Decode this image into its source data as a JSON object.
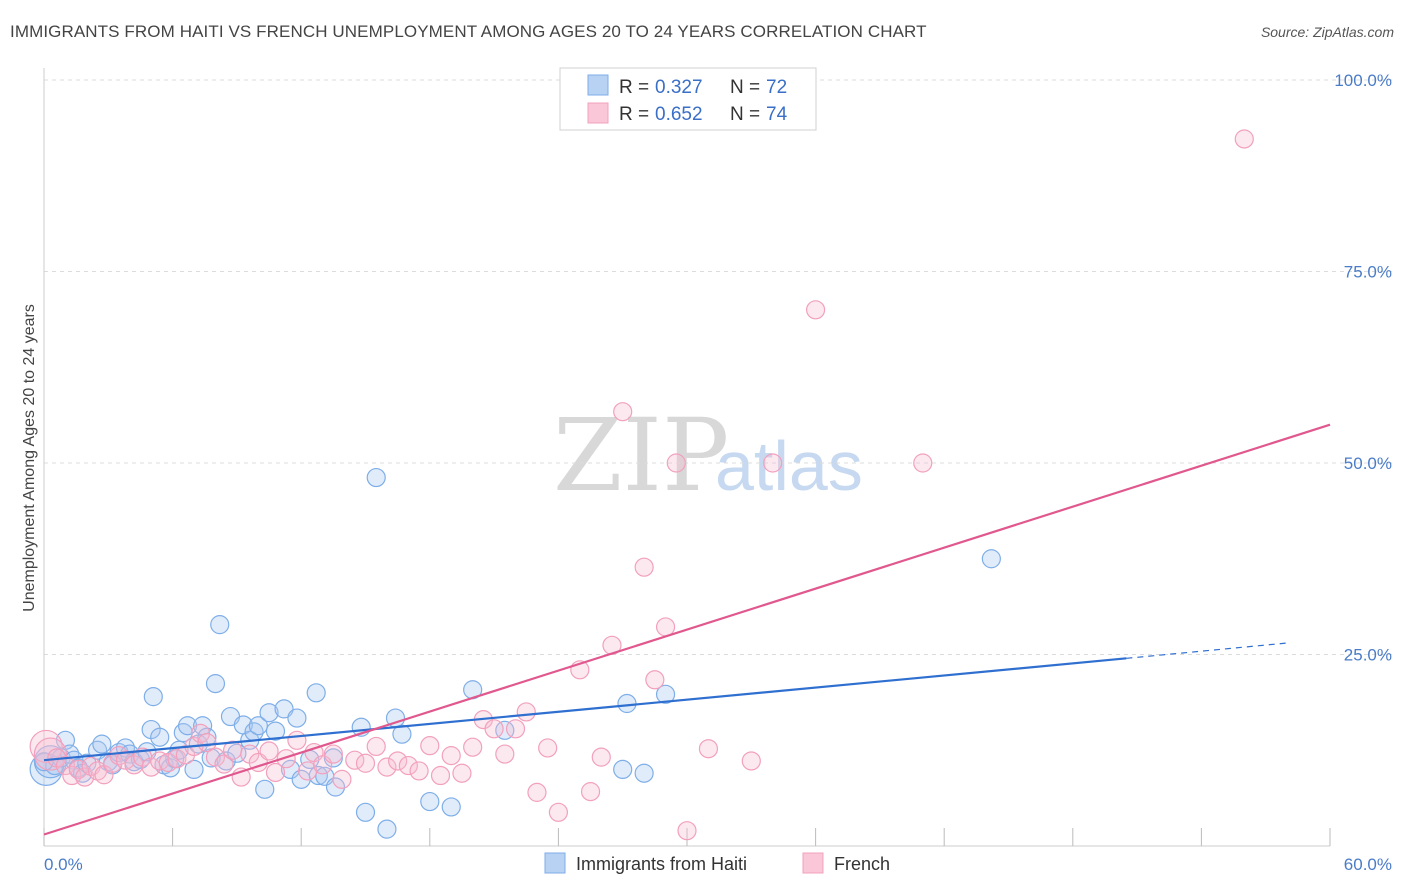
{
  "header": {
    "title": "IMMIGRANTS FROM HAITI VS FRENCH UNEMPLOYMENT AMONG AGES 20 TO 24 YEARS CORRELATION CHART",
    "source": "Source: ZipAtlas.com"
  },
  "watermark": {
    "zip": "ZIP",
    "atlas": "atlas"
  },
  "legend": {
    "rows": [
      {
        "r_label": "R = ",
        "r_value": "0.327",
        "n_label": "N = ",
        "n_value": "72"
      },
      {
        "r_label": "R = ",
        "r_value": "0.652",
        "n_label": "N = ",
        "n_value": "74"
      }
    ]
  },
  "chart_data": {
    "type": "scatter",
    "title": "IMMIGRANTS FROM HAITI VS FRENCH UNEMPLOYMENT AMONG AGES 20 TO 24 YEARS CORRELATION CHART",
    "xlabel": "",
    "ylabel": "Unemployment Among Ages 20 to 24 years",
    "xlim": [
      0,
      60
    ],
    "ylim": [
      0,
      100
    ],
    "x_tick_labels": [
      "0.0%",
      "60.0%"
    ],
    "y_ticks": [
      25,
      50,
      75,
      100
    ],
    "y_tick_labels": [
      "25.0%",
      "50.0%",
      "75.0%",
      "100.0%"
    ],
    "grid": true,
    "legend_position": "top-center",
    "colors": {
      "haiti": "#7eaee8",
      "haiti_line": "#2f6fd0",
      "french": "#f2a0bd",
      "french_line": "#e0588e"
    },
    "series": [
      {
        "name": "Immigrants from Haiti",
        "R": 0.327,
        "N": 72,
        "trend": {
          "x0": 0,
          "y0": 11.2,
          "x1": 50.5,
          "y1": 24.5,
          "dash_to_x": 58,
          "dash_to_y": 26.5
        },
        "points": [
          [
            0.1,
            10.0
          ],
          [
            0.3,
            11.0
          ],
          [
            0.5,
            10.5
          ],
          [
            0.8,
            11.5
          ],
          [
            1.0,
            13.8
          ],
          [
            1.2,
            12.0
          ],
          [
            1.4,
            11.2
          ],
          [
            1.6,
            10.2
          ],
          [
            1.8,
            9.5
          ],
          [
            2.0,
            10.8
          ],
          [
            2.5,
            12.5
          ],
          [
            2.7,
            13.3
          ],
          [
            3.0,
            11.0
          ],
          [
            3.2,
            10.6
          ],
          [
            3.5,
            12.2
          ],
          [
            3.8,
            12.8
          ],
          [
            4.0,
            12.0
          ],
          [
            4.2,
            11.0
          ],
          [
            4.5,
            11.3
          ],
          [
            4.8,
            12.3
          ],
          [
            5.0,
            15.2
          ],
          [
            5.1,
            19.5
          ],
          [
            5.4,
            14.2
          ],
          [
            5.6,
            10.6
          ],
          [
            5.9,
            10.2
          ],
          [
            6.1,
            11.4
          ],
          [
            6.3,
            12.5
          ],
          [
            6.5,
            14.8
          ],
          [
            6.7,
            15.7
          ],
          [
            7.0,
            10.0
          ],
          [
            7.2,
            13.3
          ],
          [
            7.4,
            15.7
          ],
          [
            7.6,
            14.2
          ],
          [
            7.8,
            11.5
          ],
          [
            8.0,
            21.2
          ],
          [
            8.2,
            28.9
          ],
          [
            8.5,
            11.1
          ],
          [
            8.7,
            16.9
          ],
          [
            9.0,
            12.1
          ],
          [
            9.3,
            15.8
          ],
          [
            9.6,
            13.8
          ],
          [
            9.8,
            14.9
          ],
          [
            10.0,
            15.7
          ],
          [
            10.3,
            7.4
          ],
          [
            10.5,
            17.4
          ],
          [
            10.8,
            15.0
          ],
          [
            11.2,
            17.9
          ],
          [
            11.5,
            10.0
          ],
          [
            11.8,
            16.7
          ],
          [
            12.0,
            8.7
          ],
          [
            12.4,
            11.3
          ],
          [
            12.7,
            20.0
          ],
          [
            12.8,
            9.2
          ],
          [
            13.1,
            9.1
          ],
          [
            13.5,
            11.5
          ],
          [
            13.6,
            7.7
          ],
          [
            14.8,
            15.5
          ],
          [
            15.0,
            4.4
          ],
          [
            15.5,
            48.1
          ],
          [
            16.0,
            2.2
          ],
          [
            16.4,
            16.7
          ],
          [
            16.7,
            14.6
          ],
          [
            18.0,
            5.8
          ],
          [
            19.0,
            5.1
          ],
          [
            20.0,
            20.4
          ],
          [
            21.5,
            15.1
          ],
          [
            27.0,
            10.0
          ],
          [
            27.2,
            18.6
          ],
          [
            28.0,
            9.5
          ],
          [
            29.0,
            19.8
          ],
          [
            44.2,
            37.5
          ],
          [
            0.0,
            11.0
          ]
        ]
      },
      {
        "name": "French",
        "R": 0.652,
        "N": 74,
        "trend": {
          "x0": 0,
          "y0": 1.5,
          "x1": 60,
          "y1": 55.0
        },
        "points": [
          [
            0.1,
            13.0
          ],
          [
            0.3,
            12.0
          ],
          [
            0.6,
            11.5
          ],
          [
            1.0,
            10.5
          ],
          [
            1.3,
            9.2
          ],
          [
            1.6,
            10.0
          ],
          [
            1.9,
            9.0
          ],
          [
            2.2,
            10.4
          ],
          [
            2.5,
            9.8
          ],
          [
            2.8,
            9.3
          ],
          [
            3.2,
            10.8
          ],
          [
            3.5,
            11.8
          ],
          [
            3.8,
            11.2
          ],
          [
            4.2,
            10.6
          ],
          [
            4.6,
            11.6
          ],
          [
            5.0,
            10.3
          ],
          [
            5.4,
            11.1
          ],
          [
            5.8,
            10.9
          ],
          [
            6.2,
            11.4
          ],
          [
            6.6,
            11.9
          ],
          [
            7.0,
            13.0
          ],
          [
            7.3,
            14.7
          ],
          [
            7.6,
            13.5
          ],
          [
            8.0,
            11.6
          ],
          [
            8.4,
            10.7
          ],
          [
            8.8,
            12.5
          ],
          [
            9.2,
            9.0
          ],
          [
            9.6,
            12.0
          ],
          [
            10.0,
            10.9
          ],
          [
            10.5,
            12.4
          ],
          [
            10.8,
            9.6
          ],
          [
            11.3,
            11.4
          ],
          [
            11.8,
            13.8
          ],
          [
            12.3,
            9.8
          ],
          [
            12.6,
            12.2
          ],
          [
            13.0,
            10.6
          ],
          [
            13.5,
            12.0
          ],
          [
            13.9,
            8.7
          ],
          [
            14.5,
            11.2
          ],
          [
            15.0,
            10.8
          ],
          [
            15.5,
            13.0
          ],
          [
            16.0,
            10.3
          ],
          [
            16.5,
            11.1
          ],
          [
            17.0,
            10.5
          ],
          [
            17.5,
            9.8
          ],
          [
            18.0,
            13.1
          ],
          [
            18.5,
            9.2
          ],
          [
            19.0,
            11.8
          ],
          [
            19.5,
            9.5
          ],
          [
            20.0,
            12.9
          ],
          [
            20.5,
            16.5
          ],
          [
            21.0,
            15.3
          ],
          [
            21.5,
            12.0
          ],
          [
            22.0,
            15.3
          ],
          [
            22.5,
            17.5
          ],
          [
            23.0,
            7.0
          ],
          [
            23.5,
            12.8
          ],
          [
            24.0,
            4.4
          ],
          [
            25.0,
            23.0
          ],
          [
            25.5,
            7.1
          ],
          [
            26.0,
            11.6
          ],
          [
            26.5,
            26.2
          ],
          [
            27.0,
            56.7
          ],
          [
            28.0,
            36.4
          ],
          [
            28.5,
            21.7
          ],
          [
            29.0,
            28.6
          ],
          [
            29.5,
            50.0
          ],
          [
            30.0,
            2.0
          ],
          [
            31.0,
            12.7
          ],
          [
            33.0,
            11.1
          ],
          [
            34.0,
            50.0
          ],
          [
            36.0,
            70.0
          ],
          [
            41.0,
            50.0
          ],
          [
            56.0,
            92.3
          ]
        ]
      }
    ]
  },
  "bottom_legend": {
    "items": [
      "Immigrants from Haiti",
      "French"
    ]
  }
}
